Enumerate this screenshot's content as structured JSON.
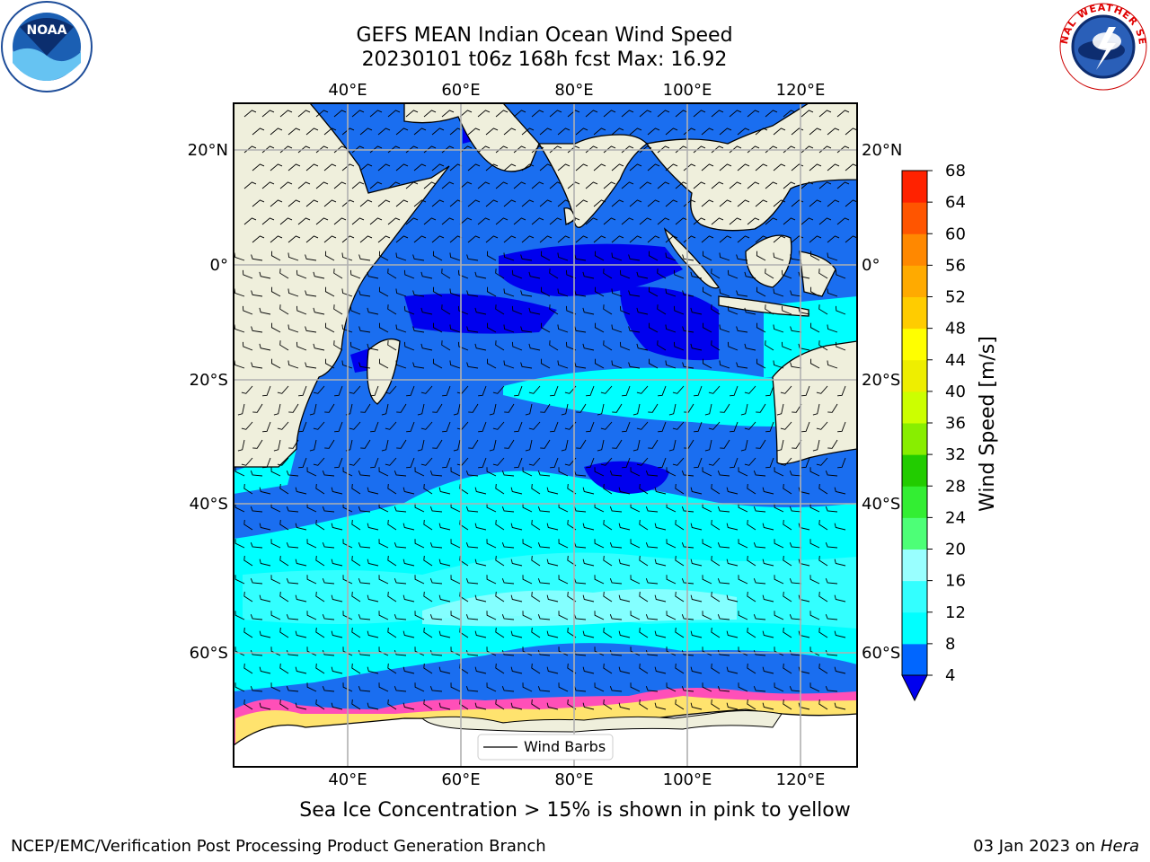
{
  "title": {
    "line1": "GEFS MEAN Indian Ocean Wind Speed",
    "line2": "20230101 t06z 168h fcst   Max: 16.92"
  },
  "logos": {
    "left": "noaa-logo",
    "left_text": "NOAA",
    "right": "nws-logo",
    "right_text": "NATIONAL WEATHER SERVICE"
  },
  "map": {
    "lon_ticks": [
      "40°E",
      "60°E",
      "80°E",
      "100°E",
      "120°E"
    ],
    "lat_ticks": [
      "20°N",
      "0°",
      "20°S",
      "40°S",
      "60°S"
    ],
    "legend_label": "Wind Barbs",
    "colors": {
      "land": "#efefdc",
      "ice": "#ffffff",
      "ice_edge": "#ff4fb8",
      "ice_yellow": "#ffe36e"
    }
  },
  "colorbar": {
    "label": "Wind Speed [m/s]",
    "ticks": [
      "4",
      "8",
      "12",
      "16",
      "20",
      "24",
      "28",
      "32",
      "36",
      "40",
      "44",
      "48",
      "52",
      "56",
      "60",
      "64",
      "68"
    ],
    "colors": [
      "#0066ff",
      "#00ffff",
      "#33ffff",
      "#99ffff",
      "#4dff77",
      "#33ee33",
      "#22cc00",
      "#88ee00",
      "#ccff00",
      "#eeee00",
      "#ffff00",
      "#ffcc00",
      "#ffaa00",
      "#ff8800",
      "#ff5500",
      "#ff2200"
    ],
    "extend_color": "#0000ee"
  },
  "caption": "Sea Ice Concentration > 15% is shown in pink to yellow",
  "footer": {
    "left": "NCEP/EMC/Verification Post Processing Product Generation Branch",
    "right_date": "03 Jan 2023 on",
    "right_host": "Hera"
  }
}
